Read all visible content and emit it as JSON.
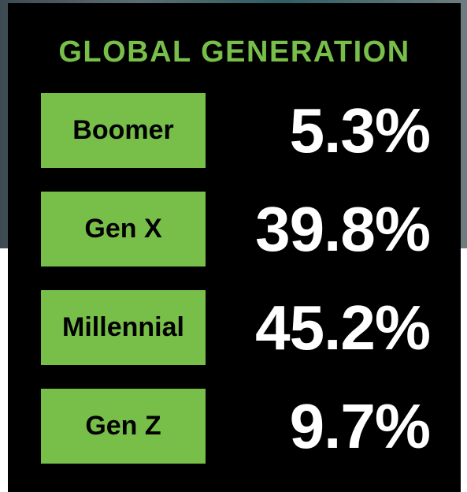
{
  "title": "GLOBAL GENERATION",
  "rows": [
    {
      "label": "Boomer",
      "value": "5.3%"
    },
    {
      "label": "Gen X",
      "value": "39.8%"
    },
    {
      "label": "Millennial",
      "value": "45.2%"
    },
    {
      "label": "Gen Z",
      "value": "9.7%"
    }
  ]
}
